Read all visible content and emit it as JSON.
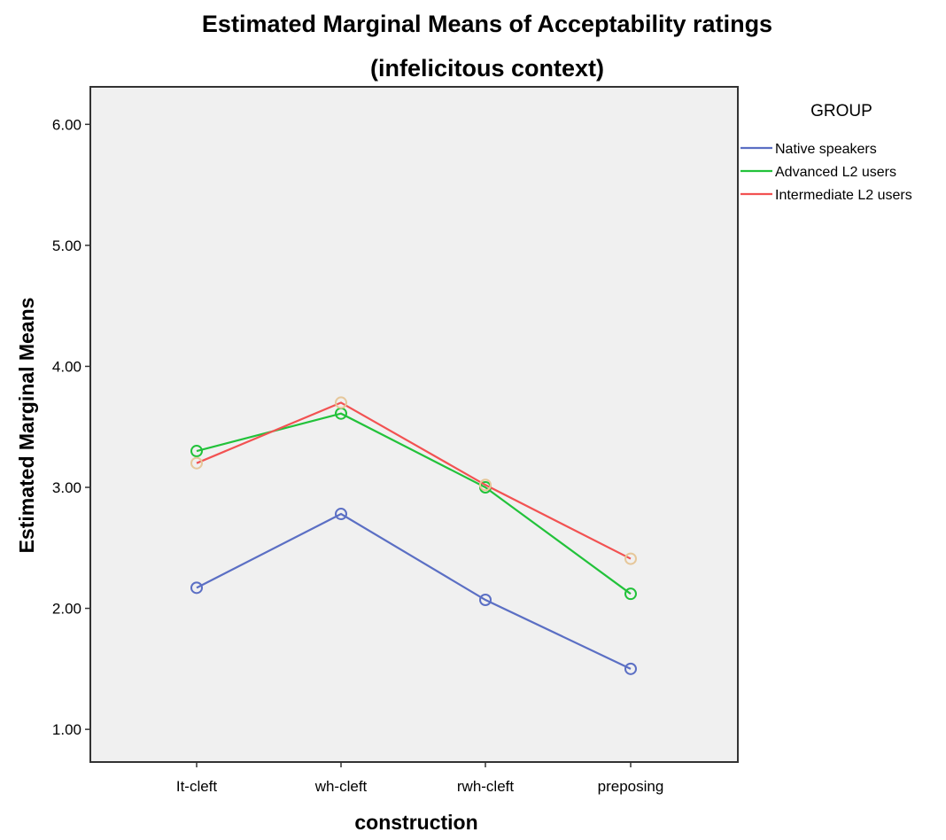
{
  "chart_data": {
    "type": "line",
    "title": "Estimated Marginal Means of Acceptability ratings",
    "subtitle": "(infelicitous context)",
    "xlabel": "construction",
    "ylabel": "Estimated Marginal Means",
    "categories": [
      "It-cleft",
      "wh-cleft",
      "rwh-cleft",
      "preposing"
    ],
    "yticks": [
      "1.00",
      "2.00",
      "3.00",
      "4.00",
      "5.00",
      "6.00"
    ],
    "ylim": [
      0.73,
      6.31
    ],
    "grid": false,
    "legend": {
      "title": "GROUP",
      "placement": "right"
    },
    "series": [
      {
        "name": "Native speakers",
        "color": "#5b6fc4",
        "marker_color": "#5b6fc4",
        "values": [
          2.17,
          2.78,
          2.07,
          1.5
        ]
      },
      {
        "name": "Advanced L2 users",
        "color": "#22c23a",
        "marker_color": "#22c23a",
        "values": [
          3.3,
          3.61,
          3.0,
          2.12
        ]
      },
      {
        "name": "Intermediate L2 users",
        "color": "#f25252",
        "marker_color": "#e6c79a",
        "values": [
          3.2,
          3.7,
          3.02,
          2.41
        ]
      }
    ],
    "plot_background": "#f0f0f0"
  }
}
